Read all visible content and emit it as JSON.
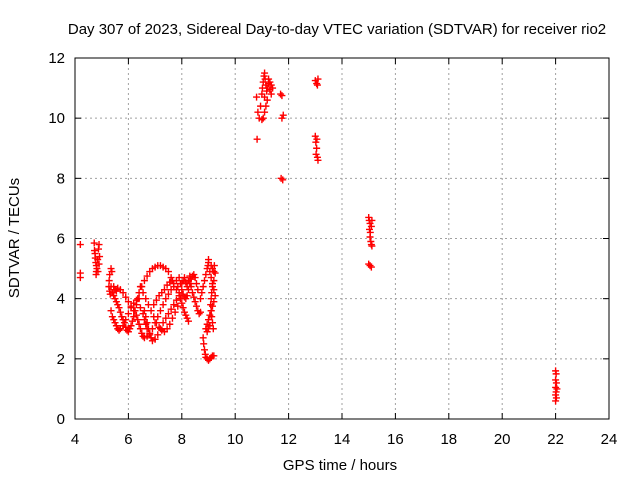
{
  "chart_data": {
    "type": "scatter",
    "title": "Day 307 of 2023, Sidereal Day-to-day VTEC variation (SDTVAR) for receiver rio2",
    "xlabel": "GPS time / hours",
    "ylabel": "SDTVAR / TECUs",
    "xlim": [
      4,
      24
    ],
    "ylim": [
      0,
      12
    ],
    "xticks": [
      4,
      6,
      8,
      10,
      12,
      14,
      16,
      18,
      20,
      22,
      24
    ],
    "yticks": [
      0,
      2,
      4,
      6,
      8,
      10,
      12
    ],
    "grid": true,
    "marker": "+",
    "color": "#ff0000",
    "series": [
      {
        "name": "SDTVAR",
        "points": [
          [
            4.2,
            5.8
          ],
          [
            4.2,
            4.85
          ],
          [
            4.2,
            4.7
          ],
          [
            4.72,
            5.85
          ],
          [
            4.73,
            5.6
          ],
          [
            4.75,
            5.5
          ],
          [
            4.76,
            5.35
          ],
          [
            4.78,
            5.2
          ],
          [
            4.8,
            5.1
          ],
          [
            4.82,
            5.0
          ],
          [
            4.8,
            4.9
          ],
          [
            4.79,
            4.8
          ],
          [
            4.85,
            5.3
          ],
          [
            4.88,
            5.65
          ],
          [
            4.9,
            5.8
          ],
          [
            4.86,
            4.9
          ],
          [
            4.9,
            5.15
          ],
          [
            4.92,
            5.4
          ],
          [
            5.35,
            5.0
          ],
          [
            5.3,
            4.8
          ],
          [
            5.28,
            4.6
          ],
          [
            5.27,
            4.4
          ],
          [
            5.3,
            4.25
          ],
          [
            5.32,
            4.15
          ],
          [
            5.35,
            4.4
          ],
          [
            5.38,
            4.9
          ],
          [
            5.4,
            4.2
          ],
          [
            5.45,
            4.1
          ],
          [
            5.5,
            4.0
          ],
          [
            5.55,
            3.9
          ],
          [
            5.6,
            3.8
          ],
          [
            5.65,
            3.7
          ],
          [
            5.7,
            3.55
          ],
          [
            5.75,
            3.4
          ],
          [
            5.8,
            3.3
          ],
          [
            5.85,
            3.2
          ],
          [
            5.9,
            3.05
          ],
          [
            5.95,
            2.95
          ],
          [
            6.0,
            2.9
          ],
          [
            6.05,
            3.0
          ],
          [
            6.1,
            3.1
          ],
          [
            6.15,
            3.25
          ],
          [
            6.2,
            3.4
          ],
          [
            6.25,
            3.6
          ],
          [
            6.3,
            3.8
          ],
          [
            6.35,
            4.0
          ],
          [
            6.4,
            4.2
          ],
          [
            6.5,
            4.4
          ],
          [
            6.6,
            4.6
          ],
          [
            6.7,
            4.75
          ],
          [
            6.8,
            4.9
          ],
          [
            6.9,
            5.0
          ],
          [
            7.0,
            5.05
          ],
          [
            7.1,
            5.1
          ],
          [
            7.2,
            5.1
          ],
          [
            7.3,
            5.05
          ],
          [
            7.4,
            5.0
          ],
          [
            7.5,
            4.9
          ],
          [
            7.6,
            4.7
          ],
          [
            7.7,
            4.5
          ],
          [
            7.8,
            4.3
          ],
          [
            5.35,
            3.6
          ],
          [
            5.4,
            3.4
          ],
          [
            5.45,
            3.3
          ],
          [
            5.5,
            3.2
          ],
          [
            5.55,
            3.1
          ],
          [
            5.6,
            3.0
          ],
          [
            5.65,
            2.95
          ],
          [
            5.7,
            3.0
          ],
          [
            5.8,
            3.1
          ],
          [
            5.9,
            3.3
          ],
          [
            6.0,
            3.5
          ],
          [
            6.1,
            3.7
          ],
          [
            6.2,
            3.85
          ],
          [
            6.3,
            3.95
          ],
          [
            6.4,
            4.0
          ],
          [
            5.45,
            4.4
          ],
          [
            5.5,
            4.3
          ],
          [
            5.55,
            4.25
          ],
          [
            5.6,
            4.35
          ],
          [
            5.7,
            4.3
          ],
          [
            5.8,
            4.2
          ],
          [
            5.9,
            4.05
          ],
          [
            6.0,
            3.9
          ],
          [
            6.1,
            3.75
          ],
          [
            6.2,
            3.6
          ],
          [
            6.3,
            3.45
          ],
          [
            6.35,
            3.3
          ],
          [
            6.4,
            3.15
          ],
          [
            6.45,
            3.0
          ],
          [
            6.5,
            2.85
          ],
          [
            6.55,
            2.75
          ],
          [
            6.6,
            2.7
          ],
          [
            6.7,
            2.75
          ],
          [
            6.8,
            2.85
          ],
          [
            6.9,
            3.0
          ],
          [
            7.0,
            3.2
          ],
          [
            7.1,
            3.4
          ],
          [
            7.2,
            3.6
          ],
          [
            7.3,
            3.8
          ],
          [
            7.4,
            4.0
          ],
          [
            7.5,
            4.15
          ],
          [
            7.6,
            4.3
          ],
          [
            7.7,
            4.4
          ],
          [
            6.45,
            4.4
          ],
          [
            6.55,
            4.2
          ],
          [
            6.65,
            4.0
          ],
          [
            6.75,
            3.8
          ],
          [
            6.85,
            3.6
          ],
          [
            6.95,
            3.4
          ],
          [
            7.05,
            3.2
          ],
          [
            7.15,
            3.05
          ],
          [
            7.25,
            2.95
          ],
          [
            7.35,
            2.9
          ],
          [
            7.45,
            3.0
          ],
          [
            7.55,
            3.15
          ],
          [
            7.65,
            3.35
          ],
          [
            7.75,
            3.55
          ],
          [
            7.85,
            3.75
          ],
          [
            6.6,
            3.6
          ],
          [
            6.65,
            3.4
          ],
          [
            6.7,
            3.2
          ],
          [
            6.75,
            3.0
          ],
          [
            6.8,
            2.8
          ],
          [
            6.85,
            2.7
          ],
          [
            6.9,
            2.6
          ],
          [
            7.0,
            2.65
          ],
          [
            7.1,
            2.8
          ],
          [
            7.2,
            3.0
          ],
          [
            7.3,
            3.2
          ],
          [
            7.4,
            3.35
          ],
          [
            7.5,
            3.5
          ],
          [
            7.6,
            3.65
          ],
          [
            7.7,
            3.8
          ],
          [
            7.8,
            3.95
          ],
          [
            7.9,
            4.1
          ],
          [
            6.45,
            3.7
          ],
          [
            6.55,
            3.5
          ],
          [
            6.6,
            3.3
          ],
          [
            6.65,
            3.15
          ],
          [
            6.7,
            3.0
          ],
          [
            6.95,
            3.8
          ],
          [
            7.05,
            3.95
          ],
          [
            7.15,
            4.1
          ],
          [
            7.25,
            4.2
          ],
          [
            7.35,
            4.3
          ],
          [
            7.45,
            4.45
          ],
          [
            7.55,
            4.55
          ],
          [
            7.65,
            4.6
          ],
          [
            7.8,
            4.6
          ],
          [
            7.85,
            4.4
          ],
          [
            7.9,
            4.2
          ],
          [
            7.95,
            4.0
          ],
          [
            8.0,
            3.85
          ],
          [
            8.05,
            3.7
          ],
          [
            8.1,
            3.55
          ],
          [
            8.15,
            3.45
          ],
          [
            8.2,
            3.35
          ],
          [
            8.25,
            3.25
          ],
          [
            7.9,
            4.7
          ],
          [
            7.95,
            4.5
          ],
          [
            8.0,
            4.3
          ],
          [
            8.05,
            4.15
          ],
          [
            8.1,
            4.05
          ],
          [
            8.15,
            4.0
          ],
          [
            8.2,
            4.1
          ],
          [
            8.25,
            4.3
          ],
          [
            8.3,
            4.5
          ],
          [
            8.35,
            4.65
          ],
          [
            8.4,
            4.75
          ],
          [
            8.45,
            4.8
          ],
          [
            8.5,
            4.7
          ],
          [
            8.55,
            4.5
          ],
          [
            8.6,
            4.3
          ],
          [
            8.0,
            4.5
          ],
          [
            8.05,
            4.6
          ],
          [
            8.1,
            4.7
          ],
          [
            8.15,
            4.55
          ],
          [
            8.2,
            4.4
          ],
          [
            8.25,
            4.6
          ],
          [
            8.3,
            4.75
          ],
          [
            8.35,
            4.4
          ],
          [
            8.4,
            4.2
          ],
          [
            8.45,
            4.05
          ],
          [
            8.5,
            3.9
          ],
          [
            8.55,
            3.75
          ],
          [
            8.6,
            3.6
          ],
          [
            8.65,
            3.5
          ],
          [
            8.7,
            3.55
          ],
          [
            8.7,
            4.0
          ],
          [
            8.75,
            4.2
          ],
          [
            8.8,
            4.4
          ],
          [
            8.85,
            4.6
          ],
          [
            8.9,
            4.8
          ],
          [
            8.95,
            5.0
          ],
          [
            9.0,
            5.2
          ],
          [
            9.0,
            5.3
          ],
          [
            8.98,
            5.1
          ],
          [
            9.05,
            4.9
          ],
          [
            9.1,
            4.7
          ],
          [
            9.15,
            4.5
          ],
          [
            9.2,
            4.3
          ],
          [
            9.25,
            4.1
          ],
          [
            9.2,
            3.9
          ],
          [
            9.15,
            3.75
          ],
          [
            9.1,
            3.6
          ],
          [
            9.05,
            3.45
          ],
          [
            9.0,
            3.3
          ],
          [
            8.95,
            3.15
          ],
          [
            8.9,
            3.0
          ],
          [
            8.95,
            2.9
          ],
          [
            9.0,
            3.0
          ],
          [
            9.05,
            3.1
          ],
          [
            8.85,
            2.3
          ],
          [
            8.88,
            2.15
          ],
          [
            8.9,
            2.05
          ],
          [
            8.95,
            2.0
          ],
          [
            9.0,
            1.95
          ],
          [
            9.05,
            2.0
          ],
          [
            9.1,
            2.05
          ],
          [
            9.15,
            2.1
          ],
          [
            9.2,
            2.1
          ],
          [
            8.82,
            2.5
          ],
          [
            8.8,
            2.7
          ],
          [
            9.1,
            5.1
          ],
          [
            9.15,
            5.0
          ],
          [
            9.2,
            4.9
          ],
          [
            9.22,
            5.1
          ],
          [
            9.25,
            4.85
          ],
          [
            9.2,
            4.6
          ],
          [
            9.15,
            4.4
          ],
          [
            9.12,
            4.2
          ],
          [
            9.1,
            4.0
          ],
          [
            9.08,
            3.8
          ],
          [
            9.1,
            3.6
          ],
          [
            9.12,
            3.4
          ],
          [
            9.15,
            3.2
          ],
          [
            9.18,
            3.0
          ],
          [
            10.8,
            10.7
          ],
          [
            10.82,
            9.3
          ],
          [
            10.85,
            10.2
          ],
          [
            10.9,
            10.0
          ],
          [
            10.95,
            10.4
          ],
          [
            11.0,
            10.8
          ],
          [
            11.02,
            11.0
          ],
          [
            11.05,
            11.2
          ],
          [
            11.08,
            11.4
          ],
          [
            11.1,
            11.5
          ],
          [
            11.12,
            11.3
          ],
          [
            11.15,
            11.1
          ],
          [
            11.18,
            10.9
          ],
          [
            11.2,
            10.6
          ],
          [
            11.15,
            10.4
          ],
          [
            11.1,
            10.2
          ],
          [
            11.05,
            10.0
          ],
          [
            11.0,
            9.95
          ],
          [
            11.1,
            10.7
          ],
          [
            11.2,
            11.0
          ],
          [
            11.25,
            11.15
          ],
          [
            11.3,
            11.2
          ],
          [
            11.35,
            11.1
          ],
          [
            11.4,
            11.0
          ],
          [
            11.3,
            10.95
          ],
          [
            11.25,
            11.3
          ],
          [
            11.35,
            10.8
          ],
          [
            11.7,
            10.8
          ],
          [
            11.75,
            10.75
          ],
          [
            11.8,
            10.1
          ],
          [
            11.75,
            10.0
          ],
          [
            11.72,
            8.0
          ],
          [
            11.78,
            7.95
          ],
          [
            13.0,
            11.25
          ],
          [
            13.05,
            11.15
          ],
          [
            13.1,
            11.3
          ],
          [
            13.08,
            11.1
          ],
          [
            13.0,
            9.4
          ],
          [
            13.02,
            9.2
          ],
          [
            13.05,
            9.0
          ],
          [
            13.03,
            8.8
          ],
          [
            13.08,
            8.7
          ],
          [
            13.1,
            8.6
          ],
          [
            13.06,
            9.3
          ],
          [
            15.0,
            6.7
          ],
          [
            15.02,
            6.6
          ],
          [
            15.05,
            6.5
          ],
          [
            15.03,
            6.3
          ],
          [
            15.06,
            6.2
          ],
          [
            15.05,
            6.05
          ],
          [
            15.08,
            5.9
          ],
          [
            15.1,
            5.8
          ],
          [
            15.12,
            6.6
          ],
          [
            15.1,
            6.4
          ],
          [
            15.12,
            5.75
          ],
          [
            15.0,
            5.15
          ],
          [
            15.05,
            5.1
          ],
          [
            15.1,
            5.05
          ],
          [
            22.0,
            1.6
          ],
          [
            22.02,
            1.5
          ],
          [
            22.0,
            1.3
          ],
          [
            22.03,
            1.2
          ],
          [
            22.0,
            1.05
          ],
          [
            22.02,
            0.9
          ],
          [
            22.0,
            0.8
          ],
          [
            22.03,
            0.7
          ],
          [
            22.0,
            0.6
          ],
          [
            22.05,
            1.0
          ]
        ]
      }
    ]
  }
}
